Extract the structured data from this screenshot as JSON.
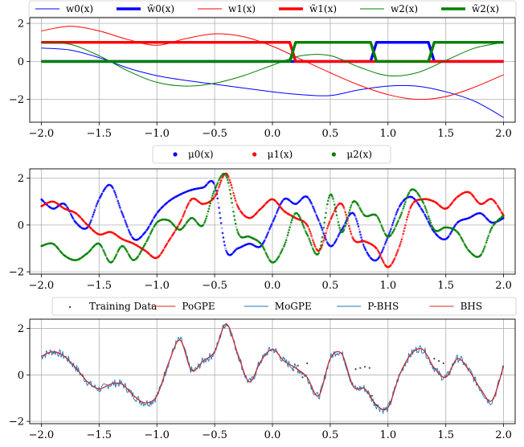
{
  "chart_data": [
    {
      "type": "line",
      "legend_placement": "top",
      "xlim": [
        -2.1,
        2.1
      ],
      "ylim": [
        -3.2,
        2.3
      ],
      "xticks": [
        "−2.0",
        "−1.5",
        "−1.0",
        "−0.5",
        "0.0",
        "0.5",
        "1.0",
        "1.5",
        "2.0"
      ],
      "yticks": [
        "−2",
        "0",
        "2"
      ],
      "grid": true,
      "series": [
        {
          "name": "w0(x)",
          "color": "#0000ff",
          "style": "thin",
          "x": [
            -2.0,
            -1.75,
            -1.5,
            -1.25,
            -1.0,
            -0.75,
            -0.5,
            -0.25,
            0.0,
            0.25,
            0.5,
            0.75,
            1.0,
            1.25,
            1.5,
            1.75,
            2.0
          ],
          "y": [
            0.7,
            0.6,
            0.2,
            -0.35,
            -0.75,
            -1.0,
            -1.2,
            -1.4,
            -1.6,
            -1.75,
            -1.8,
            -1.5,
            -1.3,
            -1.3,
            -1.6,
            -2.1,
            -2.95
          ]
        },
        {
          "name": "w̃0(x)",
          "color": "#0000ff",
          "style": "thick",
          "x": [
            -2.0,
            0.85,
            0.9,
            1.35,
            1.4,
            2.0
          ],
          "y": [
            0,
            0,
            1,
            1,
            0,
            0
          ]
        },
        {
          "name": "w1(x)",
          "color": "#ff0000",
          "style": "thin",
          "x": [
            -2.0,
            -1.75,
            -1.5,
            -1.25,
            -1.0,
            -0.75,
            -0.5,
            -0.25,
            0.0,
            0.25,
            0.5,
            0.75,
            1.0,
            1.25,
            1.5,
            1.75,
            2.0
          ],
          "y": [
            1.6,
            1.85,
            1.6,
            1.15,
            0.85,
            1.2,
            1.45,
            1.3,
            0.8,
            0.1,
            -0.6,
            -1.25,
            -1.75,
            -2.0,
            -1.85,
            -1.35,
            -0.7
          ]
        },
        {
          "name": "w̃1(x)",
          "color": "#ff0000",
          "style": "thick",
          "x": [
            -2.0,
            0.15,
            0.2,
            2.0
          ],
          "y": [
            1,
            1,
            0,
            0
          ]
        },
        {
          "name": "w2(x)",
          "color": "#008000",
          "style": "thin",
          "x": [
            -2.0,
            -1.75,
            -1.5,
            -1.25,
            -1.0,
            -0.75,
            -0.5,
            -0.25,
            0.0,
            0.25,
            0.5,
            0.75,
            1.0,
            1.25,
            1.5,
            1.75,
            2.0
          ],
          "y": [
            1.0,
            0.9,
            0.3,
            -0.5,
            -1.1,
            -1.3,
            -1.15,
            -0.75,
            -0.2,
            0.3,
            0.3,
            -0.3,
            -0.75,
            -0.6,
            0.05,
            0.7,
            1.0
          ]
        },
        {
          "name": "w̃2(x)",
          "color": "#008000",
          "style": "thick",
          "x": [
            -2.0,
            0.15,
            0.2,
            0.85,
            0.9,
            1.35,
            1.4,
            2.0
          ],
          "y": [
            0,
            0,
            1,
            1,
            0,
            0,
            1,
            1
          ]
        }
      ]
    },
    {
      "type": "scatter",
      "legend_placement": "top",
      "xlim": [
        -2.1,
        2.1
      ],
      "ylim": [
        -2.1,
        2.4
      ],
      "xticks": [
        "−2.0",
        "−1.5",
        "−1.0",
        "−0.5",
        "0.0",
        "0.5",
        "1.0",
        "1.5",
        "2.0"
      ],
      "yticks": [
        "−2",
        "0",
        "2"
      ],
      "grid": true,
      "series": [
        {
          "name": "μ0(x)",
          "color": "#0000ff",
          "x": [
            -2.0,
            -1.9,
            -1.8,
            -1.7,
            -1.6,
            -1.5,
            -1.4,
            -1.3,
            -1.2,
            -1.1,
            -1.0,
            -0.9,
            -0.8,
            -0.7,
            -0.6,
            -0.5,
            -0.4,
            -0.3,
            -0.2,
            -0.1,
            0.0,
            0.1,
            0.2,
            0.3,
            0.4,
            0.5,
            0.6,
            0.7,
            0.8,
            0.9,
            1.0,
            1.1,
            1.2,
            1.3,
            1.4,
            1.5,
            1.6,
            1.7,
            1.8,
            1.9,
            2.0
          ],
          "y": [
            1.1,
            0.7,
            0.9,
            0.1,
            -0.1,
            1.1,
            1.7,
            0.5,
            -0.6,
            -0.3,
            0.5,
            1.0,
            1.3,
            1.5,
            1.6,
            1.7,
            -1.1,
            -1.0,
            -0.8,
            -0.9,
            0.1,
            1.1,
            0.9,
            1.2,
            0.2,
            -0.9,
            -0.2,
            0.5,
            -1.0,
            -1.5,
            -0.5,
            0.8,
            1.2,
            0.6,
            -0.3,
            -0.6,
            0.1,
            0.3,
            0.5,
            0.1,
            0.3
          ]
        },
        {
          "name": "μ1(x)",
          "color": "#ff0000",
          "x": [
            -2.0,
            -1.9,
            -1.8,
            -1.7,
            -1.6,
            -1.5,
            -1.4,
            -1.3,
            -1.2,
            -1.1,
            -1.0,
            -0.9,
            -0.8,
            -0.7,
            -0.6,
            -0.5,
            -0.4,
            -0.3,
            -0.2,
            -0.1,
            0.0,
            0.1,
            0.2,
            0.3,
            0.4,
            0.5,
            0.6,
            0.7,
            0.8,
            0.9,
            1.0,
            1.1,
            1.2,
            1.3,
            1.4,
            1.5,
            1.6,
            1.7,
            1.8,
            1.9,
            2.0
          ],
          "y": [
            0.8,
            1.0,
            0.7,
            0.5,
            0.0,
            -0.4,
            -0.3,
            -0.6,
            -0.8,
            -1.1,
            -1.4,
            -0.7,
            0.1,
            1.1,
            0.9,
            1.2,
            2.2,
            0.8,
            0.3,
            0.7,
            1.1,
            0.6,
            0.3,
            0.0,
            -1.1,
            0.2,
            0.9,
            -0.6,
            -0.7,
            -1.0,
            -1.8,
            -0.9,
            0.8,
            1.1,
            1.0,
            0.7,
            1.2,
            1.4,
            0.9,
            1.1,
            0.4
          ]
        },
        {
          "name": "μ2(x)",
          "color": "#008000",
          "x": [
            -2.0,
            -1.9,
            -1.8,
            -1.7,
            -1.6,
            -1.5,
            -1.4,
            -1.3,
            -1.2,
            -1.1,
            -1.0,
            -0.9,
            -0.8,
            -0.7,
            -0.6,
            -0.5,
            -0.4,
            -0.3,
            -0.2,
            -0.1,
            0.0,
            0.1,
            0.2,
            0.3,
            0.4,
            0.5,
            0.6,
            0.7,
            0.8,
            0.9,
            1.0,
            1.1,
            1.2,
            1.3,
            1.4,
            1.5,
            1.6,
            1.7,
            1.8,
            1.9,
            2.0
          ],
          "y": [
            -0.9,
            -0.8,
            -1.3,
            -1.5,
            -1.2,
            -0.8,
            -1.6,
            -0.9,
            -1.5,
            -0.8,
            0.1,
            0.2,
            -0.2,
            0.3,
            0.0,
            1.5,
            2.1,
            -0.3,
            -0.5,
            -0.8,
            -1.6,
            -0.9,
            0.5,
            -0.4,
            -1.2,
            1.3,
            -0.3,
            1.0,
            0.4,
            0.4,
            -0.5,
            0.3,
            1.5,
            1.0,
            -0.2,
            -0.1,
            -0.3,
            -1.1,
            -1.3,
            -0.1,
            0.4
          ]
        }
      ]
    },
    {
      "type": "line",
      "legend_placement": "top",
      "xlim": [
        -2.1,
        2.1
      ],
      "ylim": [
        -2.1,
        2.4
      ],
      "xticks": [
        "−2.0",
        "−1.5",
        "−1.0",
        "−0.5",
        "0.0",
        "0.5",
        "1.0",
        "1.5",
        "2.0"
      ],
      "yticks": [
        "−2",
        "0",
        "2"
      ],
      "grid": true,
      "scatter": {
        "name": "Training Data",
        "color": "#444444",
        "x": [
          0.18,
          0.22,
          0.26,
          0.3,
          0.72,
          0.76,
          0.8,
          0.84,
          0.86,
          0.88,
          0.9,
          1.4,
          1.44,
          1.48
        ],
        "y": [
          0.2,
          0.4,
          -0.1,
          0.5,
          0.25,
          0.3,
          0.35,
          0.3,
          -0.9,
          -1.2,
          -1.3,
          0.7,
          0.6,
          0.5
        ]
      },
      "series": [
        {
          "name": "PoGPE",
          "color": "#d62728",
          "x": [
            -2.0,
            -1.9,
            -1.8,
            -1.7,
            -1.6,
            -1.5,
            -1.4,
            -1.3,
            -1.2,
            -1.1,
            -1.0,
            -0.9,
            -0.8,
            -0.7,
            -0.6,
            -0.5,
            -0.4,
            -0.3,
            -0.2,
            -0.1,
            0.0,
            0.1,
            0.2,
            0.3,
            0.4,
            0.5,
            0.6,
            0.7,
            0.8,
            0.9,
            1.0,
            1.1,
            1.2,
            1.3,
            1.4,
            1.5,
            1.6,
            1.7,
            1.8,
            1.9,
            2.0
          ],
          "y": [
            0.8,
            1.0,
            0.8,
            0.3,
            -0.3,
            -0.6,
            -0.4,
            -0.4,
            -0.9,
            -1.2,
            -0.9,
            0.5,
            1.5,
            0.2,
            0.6,
            1.0,
            2.2,
            0.9,
            -0.3,
            0.6,
            1.1,
            0.6,
            0.3,
            -0.1,
            -0.9,
            0.7,
            0.9,
            -0.5,
            -0.6,
            -1.3,
            -1.4,
            0.0,
            0.9,
            1.1,
            0.3,
            -0.1,
            0.7,
            0.2,
            -0.6,
            -1.1,
            0.4
          ]
        },
        {
          "name": "MoGPE",
          "color": "#1f77b4",
          "jitter": true,
          "x": [
            -2.0,
            -1.9,
            -1.8,
            -1.7,
            -1.6,
            -1.5,
            -1.4,
            -1.3,
            -1.2,
            -1.1,
            -1.0,
            -0.9,
            -0.8,
            -0.7,
            -0.6,
            -0.5,
            -0.4,
            -0.3,
            -0.2,
            -0.1,
            0.0,
            0.1,
            0.2,
            0.3,
            0.4,
            0.5,
            0.6,
            0.7,
            0.8,
            0.9,
            1.0,
            1.1,
            1.2,
            1.3,
            1.4,
            1.5,
            1.6,
            1.7,
            1.8,
            1.9,
            2.0
          ],
          "y": [
            0.8,
            1.0,
            0.8,
            0.3,
            -0.3,
            -0.6,
            -0.4,
            -0.4,
            -0.9,
            -1.2,
            -0.9,
            0.5,
            1.5,
            0.2,
            0.6,
            1.0,
            2.2,
            0.9,
            -0.3,
            0.6,
            1.1,
            0.6,
            0.3,
            -0.1,
            -0.9,
            0.7,
            0.9,
            -0.5,
            -0.6,
            -1.3,
            -1.4,
            0.0,
            0.9,
            1.1,
            0.3,
            -0.1,
            0.7,
            0.2,
            -0.6,
            -1.1,
            0.4
          ]
        },
        {
          "name": "P-BHS",
          "color": "#1f77b4",
          "x": [
            -2.0,
            -1.9,
            -1.8,
            -1.7,
            -1.6,
            -1.5,
            -1.4,
            -1.3,
            -1.2,
            -1.1,
            -1.0,
            -0.9,
            -0.8,
            -0.7,
            -0.6,
            -0.5,
            -0.4,
            -0.3,
            -0.2,
            -0.1,
            0.0,
            0.1,
            0.2,
            0.3,
            0.4,
            0.5,
            0.6,
            0.7,
            0.8,
            0.9,
            1.0,
            1.1,
            1.2,
            1.3,
            1.4,
            1.5,
            1.6,
            1.7,
            1.8,
            1.9,
            2.0
          ],
          "y": [
            0.8,
            1.0,
            0.8,
            0.3,
            -0.3,
            -0.6,
            -0.4,
            -0.4,
            -0.9,
            -1.2,
            -0.9,
            0.5,
            1.5,
            0.2,
            0.6,
            1.0,
            2.2,
            0.9,
            -0.3,
            0.6,
            1.1,
            0.6,
            0.3,
            -0.1,
            -0.9,
            0.7,
            0.9,
            -0.5,
            -0.6,
            -1.3,
            -1.4,
            0.0,
            0.9,
            1.1,
            0.3,
            -0.1,
            0.7,
            0.2,
            -0.6,
            -1.1,
            0.4
          ]
        },
        {
          "name": "BHS",
          "color": "#d62728",
          "x": [
            -2.0,
            -1.9,
            -1.8,
            -1.7,
            -1.6,
            -1.5,
            -1.4,
            -1.3,
            -1.2,
            -1.1,
            -1.0,
            -0.9,
            -0.8,
            -0.7,
            -0.6,
            -0.5,
            -0.4,
            -0.3,
            -0.2,
            -0.1,
            0.0,
            0.1,
            0.2,
            0.3,
            0.4,
            0.5,
            0.6,
            0.7,
            0.8,
            0.9,
            1.0,
            1.1,
            1.2,
            1.3,
            1.4,
            1.5,
            1.6,
            1.7,
            1.8,
            1.9,
            2.0
          ],
          "y": [
            0.8,
            1.0,
            0.8,
            0.3,
            -0.3,
            -0.6,
            -0.4,
            -0.4,
            -0.9,
            -1.2,
            -0.9,
            0.5,
            1.5,
            0.2,
            0.6,
            1.0,
            2.2,
            0.9,
            -0.3,
            0.6,
            1.1,
            0.6,
            0.3,
            -0.1,
            -0.9,
            0.7,
            0.9,
            -0.5,
            -0.6,
            -1.3,
            -1.4,
            0.0,
            0.9,
            1.1,
            0.3,
            -0.1,
            0.7,
            0.2,
            -0.6,
            -1.1,
            0.4
          ]
        }
      ]
    }
  ]
}
